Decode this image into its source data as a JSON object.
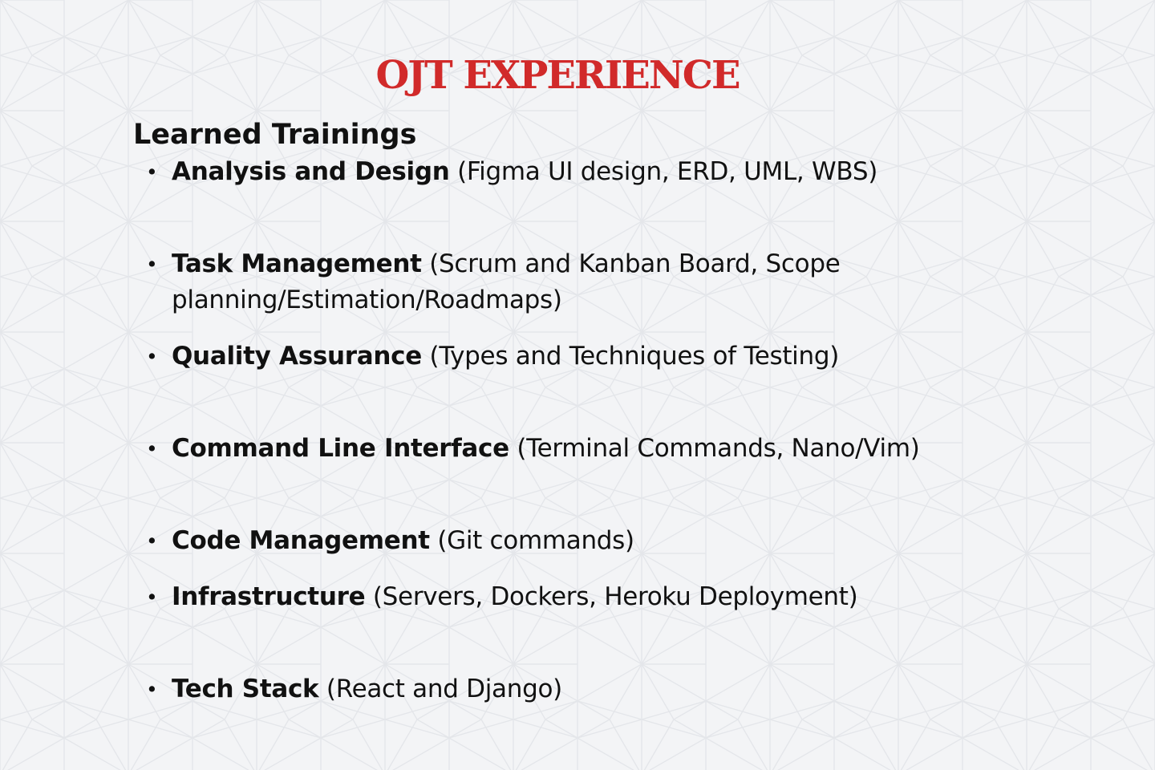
{
  "slide": {
    "title": "OJT EXPERIENCE",
    "section_heading": "Learned Trainings",
    "bullet_glyph": "•",
    "items": [
      {
        "term": "Analysis and Design",
        "detail": "(Figma UI design, ERD, UML, WBS)"
      },
      {
        "term": "Task Management",
        "detail": "(Scrum and Kanban Board, Scope planning/Estimation/Roadmaps)"
      },
      {
        "term": "Quality Assurance",
        "detail": "(Types and Techniques of Testing)"
      },
      {
        "term": "Command Line Interface",
        "detail": "(Terminal Commands, Nano/Vim)"
      },
      {
        "term": "Code Management",
        "detail": "(Git commands)"
      },
      {
        "term": "Infrastructure",
        "detail": "(Servers, Dockers, Heroku Deployment)"
      },
      {
        "term": "Tech Stack",
        "detail": "(React and Django)"
      }
    ]
  },
  "colors": {
    "background": "#f3f4f6",
    "pattern_stroke": "#e4e6ea",
    "title": "#d12a2a",
    "text": "#111111"
  }
}
